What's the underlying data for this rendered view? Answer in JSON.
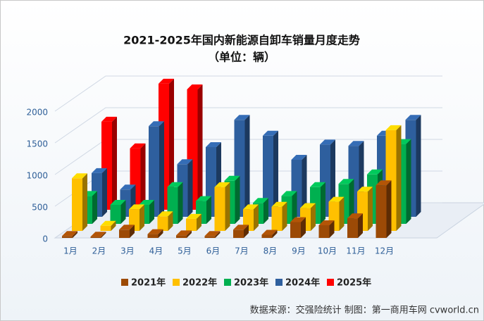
{
  "chart_data": {
    "type": "bar",
    "title": "2021-2025年国内新能源自卸车销量月度走势",
    "subtitle": "（单位：辆）",
    "source": "数据来源：交强险统计 制图：第一商用车网 cvworld.cn",
    "categories": [
      "1月",
      "2月",
      "3月",
      "4月",
      "5月",
      "6月",
      "7月",
      "8月",
      "9月",
      "10月",
      "11月",
      "12月"
    ],
    "series": [
      {
        "name": "2021年",
        "color": "#9c4a06",
        "values": [
          30,
          20,
          130,
          60,
          40,
          30,
          130,
          50,
          250,
          200,
          310,
          830
        ]
      },
      {
        "name": "2022年",
        "color": "#ffc000",
        "values": [
          830,
          80,
          340,
          230,
          190,
          690,
          340,
          380,
          360,
          460,
          620,
          1590
        ]
      },
      {
        "name": "2023年",
        "color": "#00b050",
        "values": [
          440,
          300,
          300,
          580,
          360,
          680,
          330,
          440,
          580,
          630,
          780,
          1260
        ]
      },
      {
        "name": "2024年",
        "color": "#2e5f9e",
        "values": [
          690,
          430,
          1430,
          830,
          1100,
          1530,
          1280,
          900,
          1140,
          1120,
          1280,
          1530
        ]
      },
      {
        "name": "2025年",
        "color": "#ff0000",
        "values": [
          1390,
          970,
          1990,
          1900,
          null,
          null,
          null,
          null,
          null,
          null,
          null,
          null
        ]
      }
    ],
    "ylim": [
      0,
      2000
    ],
    "yticks": [
      0,
      500,
      1000,
      1500,
      2000
    ],
    "grid": true,
    "legend": "bottom"
  }
}
